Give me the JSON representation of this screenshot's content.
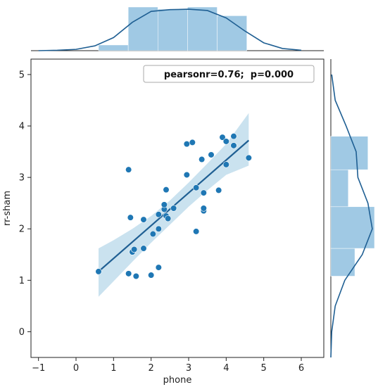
{
  "chart_data": {
    "type": "scatter",
    "xlabel": "phone",
    "ylabel": "rr-sham",
    "xlim": [
      -1.2,
      6.6
    ],
    "ylim": [
      -0.5,
      5.3
    ],
    "x_ticks": [
      -1,
      0,
      1,
      2,
      3,
      4,
      5,
      6
    ],
    "y_ticks": [
      0,
      1,
      2,
      3,
      4,
      5
    ],
    "grid": false,
    "annotation": "pearsonr=0.76;  p=0.000",
    "annotation_placement": "top-right",
    "points": [
      {
        "x": 0.6,
        "y": 1.17
      },
      {
        "x": 1.4,
        "y": 3.15
      },
      {
        "x": 1.45,
        "y": 2.22
      },
      {
        "x": 1.4,
        "y": 1.13
      },
      {
        "x": 1.6,
        "y": 1.08
      },
      {
        "x": 1.5,
        "y": 1.55
      },
      {
        "x": 1.55,
        "y": 1.6
      },
      {
        "x": 1.8,
        "y": 1.62
      },
      {
        "x": 1.8,
        "y": 2.18
      },
      {
        "x": 2.0,
        "y": 1.1
      },
      {
        "x": 2.05,
        "y": 1.9
      },
      {
        "x": 2.2,
        "y": 1.25
      },
      {
        "x": 2.2,
        "y": 2.0
      },
      {
        "x": 2.2,
        "y": 2.28
      },
      {
        "x": 2.35,
        "y": 2.38
      },
      {
        "x": 2.35,
        "y": 2.47
      },
      {
        "x": 2.4,
        "y": 2.25
      },
      {
        "x": 2.45,
        "y": 2.2
      },
      {
        "x": 2.4,
        "y": 2.76
      },
      {
        "x": 2.6,
        "y": 2.4
      },
      {
        "x": 2.95,
        "y": 3.65
      },
      {
        "x": 3.1,
        "y": 3.68
      },
      {
        "x": 2.95,
        "y": 3.05
      },
      {
        "x": 3.2,
        "y": 2.8
      },
      {
        "x": 3.2,
        "y": 1.95
      },
      {
        "x": 3.35,
        "y": 3.35
      },
      {
        "x": 3.4,
        "y": 2.35
      },
      {
        "x": 3.4,
        "y": 2.4
      },
      {
        "x": 3.4,
        "y": 2.7
      },
      {
        "x": 3.6,
        "y": 3.44
      },
      {
        "x": 3.8,
        "y": 2.75
      },
      {
        "x": 3.9,
        "y": 3.78
      },
      {
        "x": 4.0,
        "y": 3.7
      },
      {
        "x": 4.0,
        "y": 3.25
      },
      {
        "x": 4.2,
        "y": 3.8
      },
      {
        "x": 4.2,
        "y": 3.62
      },
      {
        "x": 4.6,
        "y": 3.38
      }
    ],
    "regression": {
      "x_start": 0.6,
      "y_start": 1.17,
      "x_end": 4.6,
      "y_end": 3.72
    },
    "confidence_band": {
      "x": [
        0.6,
        1.0,
        1.5,
        2.0,
        2.5,
        3.0,
        3.5,
        4.0,
        4.6
      ],
      "upper": [
        1.62,
        1.78,
        2.0,
        2.25,
        2.55,
        2.9,
        3.27,
        3.65,
        4.25
      ],
      "lower": [
        0.68,
        0.98,
        1.36,
        1.73,
        2.08,
        2.43,
        2.75,
        3.05,
        3.23
      ]
    },
    "marginal_x": {
      "bin_edges": [
        0.6,
        1.39,
        2.18,
        2.97,
        3.76,
        4.55
      ],
      "heights": [
        0.13,
        1.0,
        0.95,
        1.0,
        0.8
      ],
      "kde": {
        "x": [
          -1.0,
          -0.5,
          0.0,
          0.5,
          1.0,
          1.5,
          2.0,
          2.5,
          3.0,
          3.5,
          4.0,
          4.5,
          5.0,
          5.5,
          6.0
        ],
        "y": [
          0.0,
          0.01,
          0.03,
          0.11,
          0.3,
          0.65,
          0.9,
          0.94,
          0.95,
          0.92,
          0.75,
          0.45,
          0.18,
          0.05,
          0.01
        ]
      }
    },
    "marginal_y": {
      "bin_edges": [
        1.08,
        1.62,
        2.43,
        3.15,
        3.8
      ],
      "widths": [
        0.55,
        1.0,
        0.4,
        0.85
      ],
      "kde": {
        "y": [
          -0.5,
          0.0,
          0.5,
          1.0,
          1.5,
          2.0,
          2.5,
          3.0,
          3.5,
          4.0,
          4.5,
          5.0
        ],
        "x": [
          0.0,
          0.02,
          0.1,
          0.32,
          0.72,
          0.95,
          0.85,
          0.62,
          0.58,
          0.35,
          0.1,
          0.02
        ]
      }
    },
    "colors": {
      "points": "#1f77b4",
      "line": "#1f5f93",
      "band": "#9ecae1",
      "hist": "#8fbfdf",
      "kde": "#1f5f93"
    }
  }
}
